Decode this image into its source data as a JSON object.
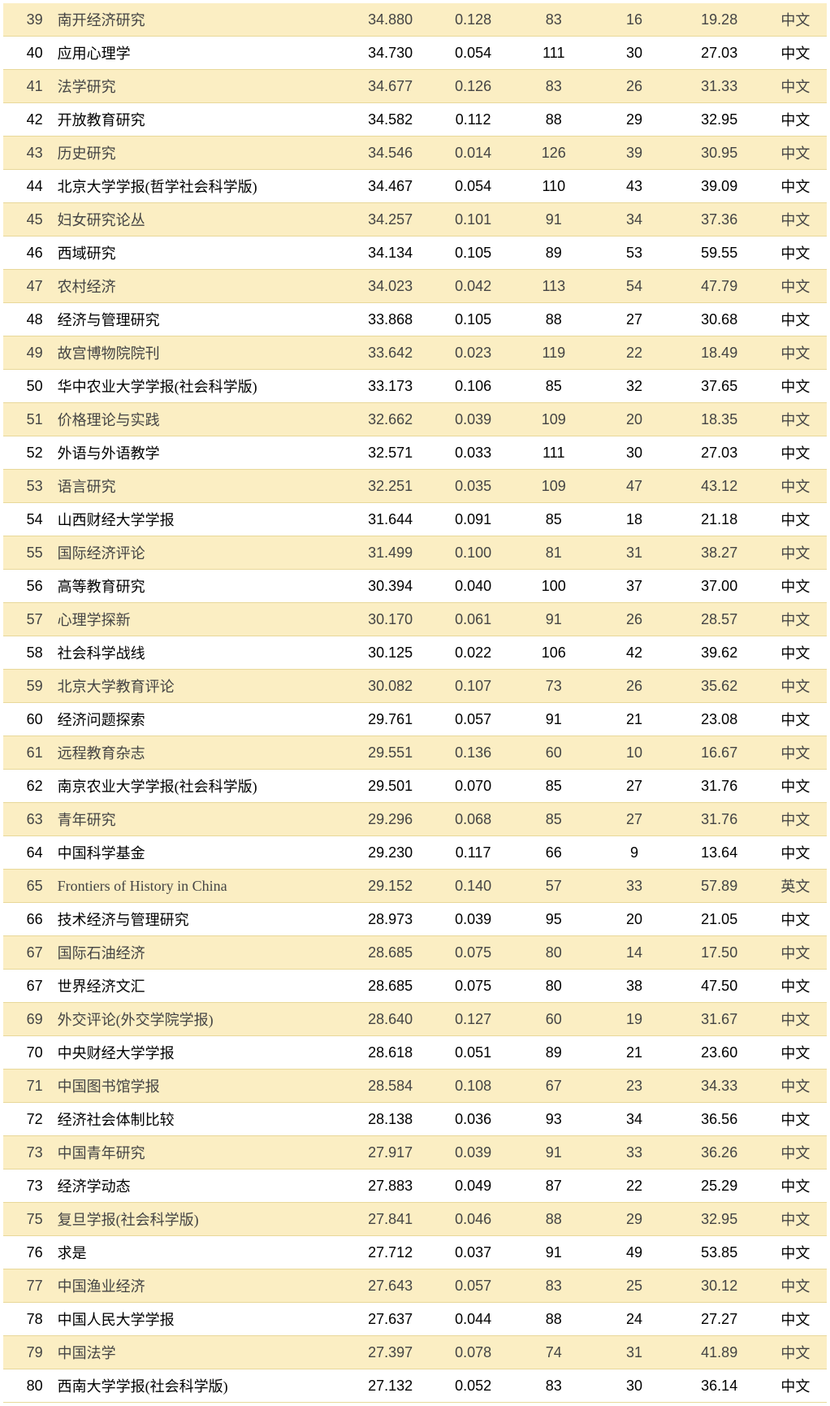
{
  "colors": {
    "odd_bg": "#fbeec3",
    "even_bg": "#ffffff",
    "border": "#e8d89a",
    "text": "#333333"
  },
  "rows": [
    {
      "rank": 39,
      "name": "南开经济研究",
      "v1": "34.880",
      "v2": "0.128",
      "v3": 83,
      "v4": 16,
      "v5": "19.28",
      "lang": "中文"
    },
    {
      "rank": 40,
      "name": "应用心理学",
      "v1": "34.730",
      "v2": "0.054",
      "v3": 111,
      "v4": 30,
      "v5": "27.03",
      "lang": "中文"
    },
    {
      "rank": 41,
      "name": "法学研究",
      "v1": "34.677",
      "v2": "0.126",
      "v3": 83,
      "v4": 26,
      "v5": "31.33",
      "lang": "中文"
    },
    {
      "rank": 42,
      "name": "开放教育研究",
      "v1": "34.582",
      "v2": "0.112",
      "v3": 88,
      "v4": 29,
      "v5": "32.95",
      "lang": "中文"
    },
    {
      "rank": 43,
      "name": "历史研究",
      "v1": "34.546",
      "v2": "0.014",
      "v3": 126,
      "v4": 39,
      "v5": "30.95",
      "lang": "中文"
    },
    {
      "rank": 44,
      "name": "北京大学学报(哲学社会科学版)",
      "v1": "34.467",
      "v2": "0.054",
      "v3": 110,
      "v4": 43,
      "v5": "39.09",
      "lang": "中文"
    },
    {
      "rank": 45,
      "name": "妇女研究论丛",
      "v1": "34.257",
      "v2": "0.101",
      "v3": 91,
      "v4": 34,
      "v5": "37.36",
      "lang": "中文"
    },
    {
      "rank": 46,
      "name": "西域研究",
      "v1": "34.134",
      "v2": "0.105",
      "v3": 89,
      "v4": 53,
      "v5": "59.55",
      "lang": "中文"
    },
    {
      "rank": 47,
      "name": "农村经济",
      "v1": "34.023",
      "v2": "0.042",
      "v3": 113,
      "v4": 54,
      "v5": "47.79",
      "lang": "中文"
    },
    {
      "rank": 48,
      "name": "经济与管理研究",
      "v1": "33.868",
      "v2": "0.105",
      "v3": 88,
      "v4": 27,
      "v5": "30.68",
      "lang": "中文"
    },
    {
      "rank": 49,
      "name": "故宫博物院院刊",
      "v1": "33.642",
      "v2": "0.023",
      "v3": 119,
      "v4": 22,
      "v5": "18.49",
      "lang": "中文"
    },
    {
      "rank": 50,
      "name": "华中农业大学学报(社会科学版)",
      "v1": "33.173",
      "v2": "0.106",
      "v3": 85,
      "v4": 32,
      "v5": "37.65",
      "lang": "中文"
    },
    {
      "rank": 51,
      "name": "价格理论与实践",
      "v1": "32.662",
      "v2": "0.039",
      "v3": 109,
      "v4": 20,
      "v5": "18.35",
      "lang": "中文"
    },
    {
      "rank": 52,
      "name": "外语与外语教学",
      "v1": "32.571",
      "v2": "0.033",
      "v3": 111,
      "v4": 30,
      "v5": "27.03",
      "lang": "中文"
    },
    {
      "rank": 53,
      "name": "语言研究",
      "v1": "32.251",
      "v2": "0.035",
      "v3": 109,
      "v4": 47,
      "v5": "43.12",
      "lang": "中文"
    },
    {
      "rank": 54,
      "name": "山西财经大学学报",
      "v1": "31.644",
      "v2": "0.091",
      "v3": 85,
      "v4": 18,
      "v5": "21.18",
      "lang": "中文"
    },
    {
      "rank": 55,
      "name": "国际经济评论",
      "v1": "31.499",
      "v2": "0.100",
      "v3": 81,
      "v4": 31,
      "v5": "38.27",
      "lang": "中文"
    },
    {
      "rank": 56,
      "name": "高等教育研究",
      "v1": "30.394",
      "v2": "0.040",
      "v3": 100,
      "v4": 37,
      "v5": "37.00",
      "lang": "中文"
    },
    {
      "rank": 57,
      "name": "心理学探新",
      "v1": "30.170",
      "v2": "0.061",
      "v3": 91,
      "v4": 26,
      "v5": "28.57",
      "lang": "中文"
    },
    {
      "rank": 58,
      "name": "社会科学战线",
      "v1": "30.125",
      "v2": "0.022",
      "v3": 106,
      "v4": 42,
      "v5": "39.62",
      "lang": "中文"
    },
    {
      "rank": 59,
      "name": "北京大学教育评论",
      "v1": "30.082",
      "v2": "0.107",
      "v3": 73,
      "v4": 26,
      "v5": "35.62",
      "lang": "中文"
    },
    {
      "rank": 60,
      "name": "经济问题探索",
      "v1": "29.761",
      "v2": "0.057",
      "v3": 91,
      "v4": 21,
      "v5": "23.08",
      "lang": "中文"
    },
    {
      "rank": 61,
      "name": "远程教育杂志",
      "v1": "29.551",
      "v2": "0.136",
      "v3": 60,
      "v4": 10,
      "v5": "16.67",
      "lang": "中文"
    },
    {
      "rank": 62,
      "name": "南京农业大学学报(社会科学版)",
      "v1": "29.501",
      "v2": "0.070",
      "v3": 85,
      "v4": 27,
      "v5": "31.76",
      "lang": "中文"
    },
    {
      "rank": 63,
      "name": "青年研究",
      "v1": "29.296",
      "v2": "0.068",
      "v3": 85,
      "v4": 27,
      "v5": "31.76",
      "lang": "中文"
    },
    {
      "rank": 64,
      "name": "中国科学基金",
      "v1": "29.230",
      "v2": "0.117",
      "v3": 66,
      "v4": 9,
      "v5": "13.64",
      "lang": "中文"
    },
    {
      "rank": 65,
      "name": "Frontiers of History in China",
      "v1": "29.152",
      "v2": "0.140",
      "v3": 57,
      "v4": 33,
      "v5": "57.89",
      "lang": "英文"
    },
    {
      "rank": 66,
      "name": "技术经济与管理研究",
      "v1": "28.973",
      "v2": "0.039",
      "v3": 95,
      "v4": 20,
      "v5": "21.05",
      "lang": "中文"
    },
    {
      "rank": 67,
      "name": "国际石油经济",
      "v1": "28.685",
      "v2": "0.075",
      "v3": 80,
      "v4": 14,
      "v5": "17.50",
      "lang": "中文"
    },
    {
      "rank": 67,
      "name": "世界经济文汇",
      "v1": "28.685",
      "v2": "0.075",
      "v3": 80,
      "v4": 38,
      "v5": "47.50",
      "lang": "中文"
    },
    {
      "rank": 69,
      "name": "外交评论(外交学院学报)",
      "v1": "28.640",
      "v2": "0.127",
      "v3": 60,
      "v4": 19,
      "v5": "31.67",
      "lang": "中文"
    },
    {
      "rank": 70,
      "name": "中央财经大学学报",
      "v1": "28.618",
      "v2": "0.051",
      "v3": 89,
      "v4": 21,
      "v5": "23.60",
      "lang": "中文"
    },
    {
      "rank": 71,
      "name": "中国图书馆学报",
      "v1": "28.584",
      "v2": "0.108",
      "v3": 67,
      "v4": 23,
      "v5": "34.33",
      "lang": "中文"
    },
    {
      "rank": 72,
      "name": "经济社会体制比较",
      "v1": "28.138",
      "v2": "0.036",
      "v3": 93,
      "v4": 34,
      "v5": "36.56",
      "lang": "中文"
    },
    {
      "rank": 73,
      "name": "中国青年研究",
      "v1": "27.917",
      "v2": "0.039",
      "v3": 91,
      "v4": 33,
      "v5": "36.26",
      "lang": "中文"
    },
    {
      "rank": 73,
      "name": "经济学动态",
      "v1": "27.883",
      "v2": "0.049",
      "v3": 87,
      "v4": 22,
      "v5": "25.29",
      "lang": "中文"
    },
    {
      "rank": 75,
      "name": "复旦学报(社会科学版)",
      "v1": "27.841",
      "v2": "0.046",
      "v3": 88,
      "v4": 29,
      "v5": "32.95",
      "lang": "中文"
    },
    {
      "rank": 76,
      "name": "求是",
      "v1": "27.712",
      "v2": "0.037",
      "v3": 91,
      "v4": 49,
      "v5": "53.85",
      "lang": "中文"
    },
    {
      "rank": 77,
      "name": "中国渔业经济",
      "v1": "27.643",
      "v2": "0.057",
      "v3": 83,
      "v4": 25,
      "v5": "30.12",
      "lang": "中文"
    },
    {
      "rank": 78,
      "name": "中国人民大学学报",
      "v1": "27.637",
      "v2": "0.044",
      "v3": 88,
      "v4": 24,
      "v5": "27.27",
      "lang": "中文"
    },
    {
      "rank": 79,
      "name": "中国法学",
      "v1": "27.397",
      "v2": "0.078",
      "v3": 74,
      "v4": 31,
      "v5": "41.89",
      "lang": "中文"
    },
    {
      "rank": 80,
      "name": "西南大学学报(社会科学版)",
      "v1": "27.132",
      "v2": "0.052",
      "v3": 83,
      "v4": 30,
      "v5": "36.14",
      "lang": "中文"
    }
  ]
}
